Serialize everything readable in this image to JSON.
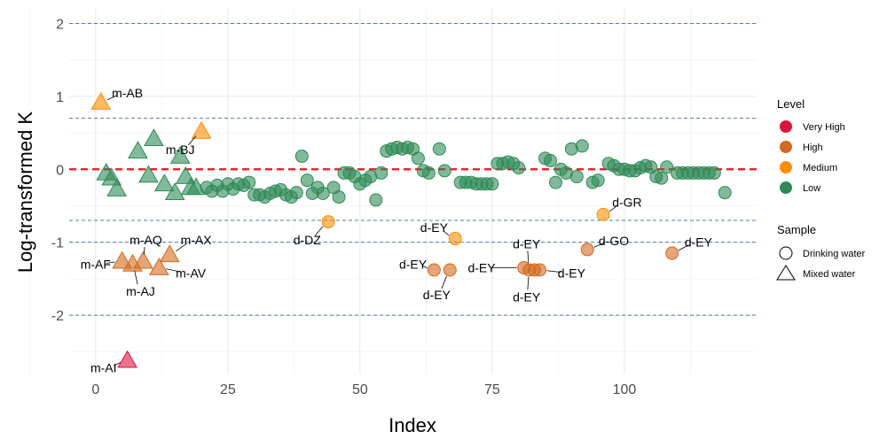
{
  "chart_data": {
    "type": "scatter",
    "title": "",
    "xlabel": "Index",
    "ylabel": "Log-transformed K",
    "xlim": [
      -5,
      125
    ],
    "ylim": [
      -2.8,
      2.2
    ],
    "x_ticks": [
      0,
      25,
      50,
      75,
      100
    ],
    "y_ticks": [
      -2,
      -1,
      0,
      1,
      2
    ],
    "x_tick_labels": [
      "0",
      "25",
      "50",
      "75",
      "100"
    ],
    "y_tick_labels": [
      "-2",
      "-1",
      "0",
      "1",
      "2"
    ],
    "grid": true,
    "reference_lines": {
      "red_dashed": 0,
      "blue_dashed": [
        2,
        0.7,
        -0.7,
        -1,
        -2
      ]
    },
    "colors": {
      "Very High": "#dc143c",
      "High": "#d2691e",
      "Medium": "#ff8c00",
      "Low": "#2e8b57",
      "red_line": "#e8141e",
      "blue_line": "#4a7fb5"
    },
    "legend": {
      "position": "right",
      "level_title": "Level",
      "level_items": [
        "Very High",
        "High",
        "Medium",
        "Low"
      ],
      "sample_title": "Sample",
      "sample_items": [
        {
          "label": "Drinking water",
          "shape": "circle"
        },
        {
          "label": "Mixed water",
          "shape": "triangle"
        }
      ]
    },
    "points": [
      {
        "x": 1,
        "y": 0.92,
        "shape": "triangle",
        "level": "Medium"
      },
      {
        "x": 2,
        "y": -0.05,
        "shape": "triangle",
        "level": "Low"
      },
      {
        "x": 3,
        "y": -0.12,
        "shape": "triangle",
        "level": "Low"
      },
      {
        "x": 4,
        "y": -0.27,
        "shape": "triangle",
        "level": "Low"
      },
      {
        "x": 5,
        "y": -1.26,
        "shape": "triangle",
        "level": "High"
      },
      {
        "x": 6,
        "y": -2.62,
        "shape": "triangle",
        "level": "Very High"
      },
      {
        "x": 7,
        "y": -1.3,
        "shape": "triangle",
        "level": "High"
      },
      {
        "x": 8,
        "y": 0.25,
        "shape": "triangle",
        "level": "Low"
      },
      {
        "x": 9,
        "y": -1.26,
        "shape": "triangle",
        "level": "High"
      },
      {
        "x": 10,
        "y": -0.08,
        "shape": "triangle",
        "level": "Low"
      },
      {
        "x": 11,
        "y": 0.42,
        "shape": "triangle",
        "level": "Low"
      },
      {
        "x": 12,
        "y": -1.35,
        "shape": "triangle",
        "level": "High"
      },
      {
        "x": 13,
        "y": -0.2,
        "shape": "triangle",
        "level": "Low"
      },
      {
        "x": 14,
        "y": -1.17,
        "shape": "triangle",
        "level": "High"
      },
      {
        "x": 15,
        "y": -0.32,
        "shape": "triangle",
        "level": "Low"
      },
      {
        "x": 16,
        "y": 0.18,
        "shape": "triangle",
        "level": "Low"
      },
      {
        "x": 17,
        "y": -0.1,
        "shape": "triangle",
        "level": "Low"
      },
      {
        "x": 18,
        "y": -0.25,
        "shape": "triangle",
        "level": "Low"
      },
      {
        "x": 19,
        "y": -0.25,
        "shape": "triangle",
        "level": "Low"
      },
      {
        "x": 20,
        "y": 0.52,
        "shape": "triangle",
        "level": "Medium"
      },
      {
        "x": 21,
        "y": -0.25,
        "shape": "circle",
        "level": "Low"
      },
      {
        "x": 22,
        "y": -0.3,
        "shape": "circle",
        "level": "Low"
      },
      {
        "x": 23,
        "y": -0.22,
        "shape": "circle",
        "level": "Low"
      },
      {
        "x": 24,
        "y": -0.3,
        "shape": "circle",
        "level": "Low"
      },
      {
        "x": 25,
        "y": -0.2,
        "shape": "circle",
        "level": "Low"
      },
      {
        "x": 26,
        "y": -0.27,
        "shape": "circle",
        "level": "Low"
      },
      {
        "x": 27,
        "y": -0.2,
        "shape": "circle",
        "level": "Low"
      },
      {
        "x": 28,
        "y": -0.22,
        "shape": "circle",
        "level": "Low"
      },
      {
        "x": 29,
        "y": -0.18,
        "shape": "circle",
        "level": "Low"
      },
      {
        "x": 30,
        "y": -0.35,
        "shape": "circle",
        "level": "Low"
      },
      {
        "x": 31,
        "y": -0.35,
        "shape": "circle",
        "level": "Low"
      },
      {
        "x": 32,
        "y": -0.38,
        "shape": "circle",
        "level": "Low"
      },
      {
        "x": 33,
        "y": -0.33,
        "shape": "circle",
        "level": "Low"
      },
      {
        "x": 34,
        "y": -0.3,
        "shape": "circle",
        "level": "Low"
      },
      {
        "x": 35,
        "y": -0.28,
        "shape": "circle",
        "level": "Low"
      },
      {
        "x": 36,
        "y": -0.35,
        "shape": "circle",
        "level": "Low"
      },
      {
        "x": 37,
        "y": -0.38,
        "shape": "circle",
        "level": "Low"
      },
      {
        "x": 38,
        "y": -0.32,
        "shape": "circle",
        "level": "Low"
      },
      {
        "x": 39,
        "y": 0.18,
        "shape": "circle",
        "level": "Low"
      },
      {
        "x": 40,
        "y": -0.15,
        "shape": "circle",
        "level": "Low"
      },
      {
        "x": 41,
        "y": -0.33,
        "shape": "circle",
        "level": "Low"
      },
      {
        "x": 42,
        "y": -0.25,
        "shape": "circle",
        "level": "Low"
      },
      {
        "x": 43,
        "y": -0.33,
        "shape": "circle",
        "level": "Low"
      },
      {
        "x": 44,
        "y": -0.72,
        "shape": "circle",
        "level": "Medium"
      },
      {
        "x": 45,
        "y": -0.25,
        "shape": "circle",
        "level": "Low"
      },
      {
        "x": 46,
        "y": -0.38,
        "shape": "circle",
        "level": "Low"
      },
      {
        "x": 47,
        "y": -0.05,
        "shape": "circle",
        "level": "Low"
      },
      {
        "x": 48,
        "y": -0.05,
        "shape": "circle",
        "level": "Low"
      },
      {
        "x": 49,
        "y": -0.1,
        "shape": "circle",
        "level": "Low"
      },
      {
        "x": 50,
        "y": -0.2,
        "shape": "circle",
        "level": "Low"
      },
      {
        "x": 51,
        "y": -0.15,
        "shape": "circle",
        "level": "Low"
      },
      {
        "x": 52,
        "y": -0.1,
        "shape": "circle",
        "level": "Low"
      },
      {
        "x": 53,
        "y": -0.42,
        "shape": "circle",
        "level": "Low"
      },
      {
        "x": 54,
        "y": -0.05,
        "shape": "circle",
        "level": "Low"
      },
      {
        "x": 55,
        "y": 0.25,
        "shape": "circle",
        "level": "Low"
      },
      {
        "x": 56,
        "y": 0.28,
        "shape": "circle",
        "level": "Low"
      },
      {
        "x": 57,
        "y": 0.3,
        "shape": "circle",
        "level": "Low"
      },
      {
        "x": 58,
        "y": 0.28,
        "shape": "circle",
        "level": "Low"
      },
      {
        "x": 59,
        "y": 0.3,
        "shape": "circle",
        "level": "Low"
      },
      {
        "x": 60,
        "y": 0.28,
        "shape": "circle",
        "level": "Low"
      },
      {
        "x": 61,
        "y": 0.15,
        "shape": "circle",
        "level": "Low"
      },
      {
        "x": 62,
        "y": -0.02,
        "shape": "circle",
        "level": "Low"
      },
      {
        "x": 63,
        "y": -0.05,
        "shape": "circle",
        "level": "Low"
      },
      {
        "x": 64,
        "y": -1.38,
        "shape": "circle",
        "level": "High"
      },
      {
        "x": 65,
        "y": 0.28,
        "shape": "circle",
        "level": "Low"
      },
      {
        "x": 66,
        "y": -0.02,
        "shape": "circle",
        "level": "Low"
      },
      {
        "x": 67,
        "y": -1.38,
        "shape": "circle",
        "level": "High"
      },
      {
        "x": 68,
        "y": -0.95,
        "shape": "circle",
        "level": "Medium"
      },
      {
        "x": 69,
        "y": -0.18,
        "shape": "circle",
        "level": "Low"
      },
      {
        "x": 70,
        "y": -0.18,
        "shape": "circle",
        "level": "Low"
      },
      {
        "x": 71,
        "y": -0.18,
        "shape": "circle",
        "level": "Low"
      },
      {
        "x": 72,
        "y": -0.2,
        "shape": "circle",
        "level": "Low"
      },
      {
        "x": 73,
        "y": -0.2,
        "shape": "circle",
        "level": "Low"
      },
      {
        "x": 74,
        "y": -0.2,
        "shape": "circle",
        "level": "Low"
      },
      {
        "x": 75,
        "y": -0.2,
        "shape": "circle",
        "level": "Low"
      },
      {
        "x": 76,
        "y": 0.08,
        "shape": "circle",
        "level": "Low"
      },
      {
        "x": 77,
        "y": 0.08,
        "shape": "circle",
        "level": "Low"
      },
      {
        "x": 78,
        "y": 0.1,
        "shape": "circle",
        "level": "Low"
      },
      {
        "x": 79,
        "y": 0.08,
        "shape": "circle",
        "level": "Low"
      },
      {
        "x": 80,
        "y": 0.02,
        "shape": "circle",
        "level": "Low"
      },
      {
        "x": 81,
        "y": -1.35,
        "shape": "circle",
        "level": "High"
      },
      {
        "x": 82,
        "y": -1.38,
        "shape": "circle",
        "level": "High"
      },
      {
        "x": 83,
        "y": -1.38,
        "shape": "circle",
        "level": "High"
      },
      {
        "x": 84,
        "y": -1.38,
        "shape": "circle",
        "level": "High"
      },
      {
        "x": 85,
        "y": 0.15,
        "shape": "circle",
        "level": "Low"
      },
      {
        "x": 86,
        "y": 0.12,
        "shape": "circle",
        "level": "Low"
      },
      {
        "x": 87,
        "y": -0.18,
        "shape": "circle",
        "level": "Low"
      },
      {
        "x": 88,
        "y": 0.0,
        "shape": "circle",
        "level": "Low"
      },
      {
        "x": 89,
        "y": -0.05,
        "shape": "circle",
        "level": "Low"
      },
      {
        "x": 90,
        "y": 0.28,
        "shape": "circle",
        "level": "Low"
      },
      {
        "x": 91,
        "y": -0.1,
        "shape": "circle",
        "level": "Low"
      },
      {
        "x": 92,
        "y": 0.32,
        "shape": "circle",
        "level": "Low"
      },
      {
        "x": 93,
        "y": -1.1,
        "shape": "circle",
        "level": "High"
      },
      {
        "x": 94,
        "y": -0.18,
        "shape": "circle",
        "level": "Low"
      },
      {
        "x": 95,
        "y": -0.15,
        "shape": "circle",
        "level": "Low"
      },
      {
        "x": 96,
        "y": -0.62,
        "shape": "circle",
        "level": "Medium"
      },
      {
        "x": 97,
        "y": 0.08,
        "shape": "circle",
        "level": "Low"
      },
      {
        "x": 98,
        "y": 0.05,
        "shape": "circle",
        "level": "Low"
      },
      {
        "x": 99,
        "y": 0.0,
        "shape": "circle",
        "level": "Low"
      },
      {
        "x": 100,
        "y": 0.0,
        "shape": "circle",
        "level": "Low"
      },
      {
        "x": 101,
        "y": -0.02,
        "shape": "circle",
        "level": "Low"
      },
      {
        "x": 102,
        "y": -0.02,
        "shape": "circle",
        "level": "Low"
      },
      {
        "x": 103,
        "y": 0.02,
        "shape": "circle",
        "level": "Low"
      },
      {
        "x": 104,
        "y": 0.05,
        "shape": "circle",
        "level": "Low"
      },
      {
        "x": 105,
        "y": 0.03,
        "shape": "circle",
        "level": "Low"
      },
      {
        "x": 106,
        "y": -0.1,
        "shape": "circle",
        "level": "Low"
      },
      {
        "x": 107,
        "y": -0.12,
        "shape": "circle",
        "level": "Low"
      },
      {
        "x": 108,
        "y": 0.03,
        "shape": "circle",
        "level": "Low"
      },
      {
        "x": 109,
        "y": -1.15,
        "shape": "circle",
        "level": "High"
      },
      {
        "x": 110,
        "y": -0.05,
        "shape": "circle",
        "level": "Low"
      },
      {
        "x": 111,
        "y": -0.05,
        "shape": "circle",
        "level": "Low"
      },
      {
        "x": 112,
        "y": -0.05,
        "shape": "circle",
        "level": "Low"
      },
      {
        "x": 113,
        "y": -0.05,
        "shape": "circle",
        "level": "Low"
      },
      {
        "x": 114,
        "y": -0.05,
        "shape": "circle",
        "level": "Low"
      },
      {
        "x": 115,
        "y": -0.05,
        "shape": "circle",
        "level": "Low"
      },
      {
        "x": 116,
        "y": -0.05,
        "shape": "circle",
        "level": "Low"
      },
      {
        "x": 117,
        "y": -0.05,
        "shape": "circle",
        "level": "Low"
      },
      {
        "x": 119,
        "y": -0.32,
        "shape": "circle",
        "level": "Low"
      }
    ],
    "annotations": [
      {
        "text": "m-AB",
        "x": 1,
        "y": 0.92,
        "tx": 6,
        "ty": 1.05,
        "anchor": "middle"
      },
      {
        "text": "m-BJ",
        "x": 20,
        "y": 0.52,
        "tx": 16,
        "ty": 0.27,
        "anchor": "middle"
      },
      {
        "text": "m-AQ",
        "x": 9,
        "y": -1.26,
        "tx": 9.5,
        "ty": -0.97,
        "anchor": "middle"
      },
      {
        "text": "m-AX",
        "x": 14,
        "y": -1.17,
        "tx": 19,
        "ty": -0.97,
        "anchor": "middle"
      },
      {
        "text": "m-AF",
        "x": 5,
        "y": -1.26,
        "tx": 0,
        "ty": -1.3,
        "anchor": "middle"
      },
      {
        "text": "m-AV",
        "x": 12,
        "y": -1.35,
        "tx": 18,
        "ty": -1.42,
        "anchor": "middle"
      },
      {
        "text": "m-AJ",
        "x": 7,
        "y": -1.3,
        "tx": 8.5,
        "ty": -1.67,
        "anchor": "middle"
      },
      {
        "text": "m-AI",
        "x": 6,
        "y": -2.62,
        "tx": 1.5,
        "ty": -2.72,
        "anchor": "middle"
      },
      {
        "text": "d-DZ",
        "x": 44,
        "y": -0.72,
        "tx": 40,
        "ty": -0.97,
        "anchor": "middle"
      },
      {
        "text": "d-EY",
        "x": 68,
        "y": -0.95,
        "tx": 64,
        "ty": -0.8,
        "anchor": "middle"
      },
      {
        "text": "d-EY",
        "x": 64,
        "y": -1.38,
        "tx": 60,
        "ty": -1.3,
        "anchor": "middle"
      },
      {
        "text": "d-EY",
        "x": 67,
        "y": -1.38,
        "tx": 64.5,
        "ty": -1.72,
        "anchor": "middle"
      },
      {
        "text": "d-EY",
        "x": 81,
        "y": -1.35,
        "tx": 73,
        "ty": -1.35,
        "anchor": "middle"
      },
      {
        "text": "d-EY",
        "x": 82,
        "y": -1.38,
        "tx": 81.5,
        "ty": -1.02,
        "anchor": "middle"
      },
      {
        "text": "d-EY",
        "x": 84,
        "y": -1.38,
        "tx": 90,
        "ty": -1.42,
        "anchor": "middle"
      },
      {
        "text": "d-EY",
        "x": 82,
        "y": -1.38,
        "tx": 81.5,
        "ty": -1.75,
        "anchor": "middle"
      },
      {
        "text": "d-GO",
        "x": 93,
        "y": -1.1,
        "tx": 98,
        "ty": -0.98,
        "anchor": "middle"
      },
      {
        "text": "d-GR",
        "x": 96,
        "y": -0.62,
        "tx": 100.5,
        "ty": -0.45,
        "anchor": "middle"
      },
      {
        "text": "d-EY",
        "x": 109,
        "y": -1.15,
        "tx": 114,
        "ty": -1.0,
        "anchor": "middle"
      }
    ]
  }
}
